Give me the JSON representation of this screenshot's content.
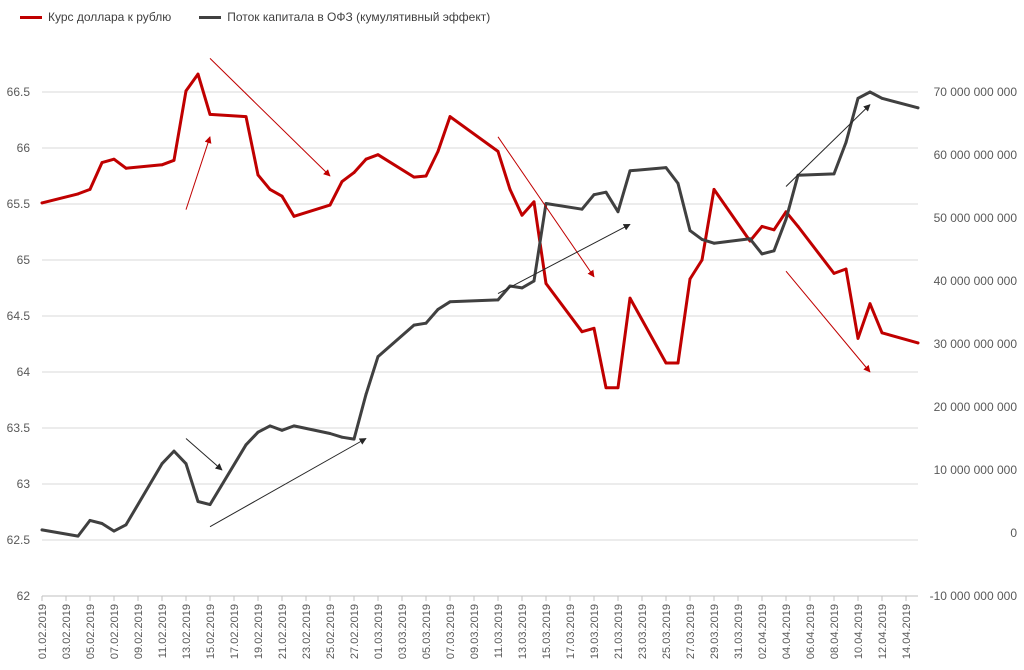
{
  "chart_data": {
    "type": "line",
    "title": "",
    "legend": {
      "placement": "top-left",
      "entries": [
        "Курс доллара к рублю",
        "Поток капитала в ОФЗ (кумулятивный эффект)"
      ]
    },
    "grid": "horizontal",
    "x_dates": [
      "01.02.2019",
      "04.02.2019",
      "05.02.2019",
      "06.02.2019",
      "07.02.2019",
      "08.02.2019",
      "11.02.2019",
      "12.02.2019",
      "13.02.2019",
      "14.02.2019",
      "15.02.2019",
      "18.02.2019",
      "19.02.2019",
      "20.02.2019",
      "21.02.2019",
      "22.02.2019",
      "25.02.2019",
      "26.02.2019",
      "27.02.2019",
      "28.02.2019",
      "01.03.2019",
      "04.03.2019",
      "05.03.2019",
      "06.03.2019",
      "07.03.2019",
      "11.03.2019",
      "12.03.2019",
      "13.03.2019",
      "14.03.2019",
      "15.03.2019",
      "18.03.2019",
      "19.03.2019",
      "20.03.2019",
      "21.03.2019",
      "22.03.2019",
      "25.03.2019",
      "26.03.2019",
      "27.03.2019",
      "28.03.2019",
      "29.03.2019",
      "01.04.2019",
      "02.04.2019",
      "03.04.2019",
      "04.04.2019",
      "05.04.2019",
      "08.04.2019",
      "09.04.2019",
      "10.04.2019",
      "11.04.2019",
      "12.04.2019",
      "15.04.2019"
    ],
    "x_tick_labels": [
      "01.02.2019",
      "03.02.2019",
      "05.02.2019",
      "07.02.2019",
      "09.02.2019",
      "11.02.2019",
      "13.02.2019",
      "15.02.2019",
      "17.02.2019",
      "19.02.2019",
      "21.02.2019",
      "23.02.2019",
      "25.02.2019",
      "27.02.2019",
      "01.03.2019",
      "03.03.2019",
      "05.03.2019",
      "07.03.2019",
      "09.03.2019",
      "11.03.2019",
      "13.03.2019",
      "15.03.2019",
      "17.03.2019",
      "19.03.2019",
      "21.03.2019",
      "23.03.2019",
      "25.03.2019",
      "27.03.2019",
      "29.03.2019",
      "31.03.2019",
      "02.04.2019",
      "04.04.2019",
      "06.04.2019",
      "08.04.2019",
      "10.04.2019",
      "12.04.2019",
      "14.04.2019"
    ],
    "y_left": {
      "range": [
        62,
        66.5
      ],
      "ticks": [
        "62",
        "62.5",
        "63",
        "63.5",
        "64",
        "64.5",
        "65",
        "65.5",
        "66",
        "66.5"
      ]
    },
    "y_right": {
      "range": [
        -10000000000,
        70000000000
      ],
      "ticks": [
        "-10 000 000 000",
        "0",
        "10 000 000 000",
        "20 000 000 000",
        "30 000 000 000",
        "40 000 000 000",
        "50 000 000 000",
        "60 000 000 000",
        "70 000 000 000"
      ]
    },
    "series": [
      {
        "name": "Курс доллара к рублю",
        "axis": "left",
        "color": "#c00000",
        "values": [
          65.51,
          65.59,
          65.63,
          65.87,
          65.9,
          65.82,
          65.85,
          65.89,
          66.51,
          66.66,
          66.3,
          66.28,
          65.76,
          65.63,
          65.57,
          65.39,
          65.49,
          65.7,
          65.78,
          65.9,
          65.94,
          65.74,
          65.75,
          65.97,
          66.28,
          65.97,
          65.63,
          65.4,
          65.52,
          64.79,
          64.36,
          64.39,
          63.86,
          63.86,
          64.66,
          64.08,
          64.08,
          64.83,
          65.0,
          65.63,
          65.17,
          65.3,
          65.27,
          65.43,
          65.3,
          64.88,
          64.92,
          64.3,
          64.61,
          64.35,
          64.26
        ]
      },
      {
        "name": "Поток капитала в ОФЗ (кумулятивный эффект)",
        "axis": "right",
        "color": "#404040",
        "values": [
          500000000,
          -500000000,
          2000000000,
          1500000000,
          300000000,
          1300000000,
          11000000000,
          13000000000,
          11000000000,
          5000000000,
          4500000000,
          14000000000,
          16000000000,
          17000000000,
          16300000000,
          17000000000,
          15800000000,
          15200000000,
          14900000000,
          22000000000,
          28000000000,
          33000000000,
          33300000000,
          35500000000,
          36700000000,
          37000000000,
          39200000000,
          38900000000,
          40000000000,
          52300000000,
          51400000000,
          53700000000,
          54100000000,
          51000000000,
          57500000000,
          58000000000,
          55500000000,
          48000000000,
          46600000000,
          46000000000,
          46700000000,
          44300000000,
          44800000000,
          49800000000,
          56800000000,
          57000000000,
          62000000000,
          69000000000,
          70000000000,
          69000000000,
          67500000000
        ]
      }
    ],
    "annotations": [
      {
        "type": "arrow",
        "color": "#c00000",
        "from_date": "13.02.2019",
        "from_y_left": 65.45,
        "to_date": "15.02.2019",
        "to_y_left": 66.1
      },
      {
        "type": "arrow",
        "color": "#c00000",
        "from_date": "15.02.2019",
        "from_y_left": 66.8,
        "to_date": "25.02.2019",
        "to_y_left": 65.75
      },
      {
        "type": "arrow",
        "color": "#c00000",
        "from_date": "11.03.2019",
        "from_y_left": 66.1,
        "to_date": "19.03.2019",
        "to_y_left": 64.85
      },
      {
        "type": "arrow",
        "color": "#c00000",
        "from_date": "04.04.2019",
        "from_y_left": 64.9,
        "to_date": "11.04.2019",
        "to_y_left": 64.0
      },
      {
        "type": "arrow",
        "color": "#262626",
        "from_date": "13.02.2019",
        "from_y_right": 15000000000,
        "to_date": "16.02.2019",
        "to_y_right": 10000000000
      },
      {
        "type": "arrow",
        "color": "#262626",
        "from_date": "15.02.2019",
        "from_y_right": 1000000000,
        "to_date": "28.02.2019",
        "to_y_right": 15000000000
      },
      {
        "type": "arrow",
        "color": "#262626",
        "from_date": "11.03.2019",
        "from_y_right": 38000000000,
        "to_date": "22.03.2019",
        "to_y_right": 49000000000
      },
      {
        "type": "arrow",
        "color": "#262626",
        "from_date": "04.04.2019",
        "from_y_right": 55000000000,
        "to_date": "11.04.2019",
        "to_y_right": 68000000000
      }
    ]
  }
}
